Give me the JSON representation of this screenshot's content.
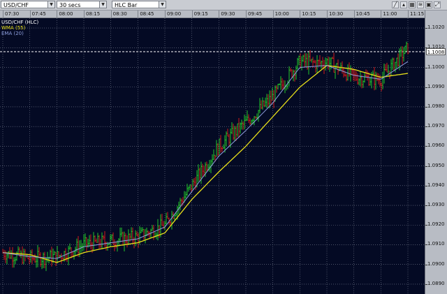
{
  "toolbar": {
    "symbol": "USD/CHF",
    "interval": "30 secs",
    "chart_style": "HLC Bar",
    "tool_icons": [
      "pencil-icon",
      "chart-icon",
      "grid-icon",
      "indicator-icon",
      "settings-icon",
      "expand-icon"
    ]
  },
  "time_labels": [
    "07:30",
    "07:45",
    "08:00",
    "08:15",
    "08:30",
    "08:45",
    "09:00",
    "09:15",
    "09:30",
    "09:45",
    "10:00",
    "10:15",
    "10:30",
    "10:45",
    "11:00",
    "11:15"
  ],
  "legend": {
    "title": "USD/CHF (HLC)",
    "wma": "WMA (55)",
    "ema": "EMA (20)"
  },
  "current_price": "1.1008",
  "colors": {
    "background": "#040a24",
    "grid": "#7a8092",
    "up_bar": "#22c62a",
    "down_bar": "#d11a1a",
    "wma": "#e8e01a",
    "ema": "#8fa0e0",
    "legend_title": "#ffffff"
  },
  "chart_data": {
    "type": "line",
    "title": "USD/CHF (HLC)",
    "x_axis_time_labels": [
      "07:30",
      "07:45",
      "08:00",
      "08:15",
      "08:30",
      "08:45",
      "09:00",
      "09:15",
      "09:30",
      "09:45",
      "10:00",
      "10:15",
      "10:30",
      "10:45",
      "11:00",
      "11:15"
    ],
    "y_tick_labels": [
      "1.1020",
      "1.1010",
      "1.1000",
      "1.0990",
      "1.0980",
      "1.0970",
      "1.0960",
      "1.0950",
      "1.0940",
      "1.0930",
      "1.0920",
      "1.0910",
      "1.0900",
      "1.0890"
    ],
    "ylim": [
      1.0885,
      1.1025
    ],
    "current_price_line": 1.1008,
    "grid": true,
    "series": [
      {
        "name": "USD/CHF (HLC)",
        "x": [
          "07:30",
          "07:45",
          "08:00",
          "08:15",
          "08:30",
          "08:45",
          "09:00",
          "09:15",
          "09:30",
          "09:45",
          "10:00",
          "10:15",
          "10:25",
          "10:30",
          "10:45",
          "11:00",
          "11:15"
        ],
        "values": [
          1.0906,
          1.0903,
          1.0904,
          1.091,
          1.0912,
          1.0914,
          1.092,
          1.094,
          1.096,
          1.0972,
          1.0985,
          1.1003,
          1.1002,
          1.1003,
          1.0995,
          1.0994,
          1.101
        ]
      },
      {
        "name": "WMA (55)",
        "x": [
          "07:30",
          "07:45",
          "08:00",
          "08:15",
          "08:30",
          "08:45",
          "09:00",
          "09:15",
          "09:30",
          "09:45",
          "10:00",
          "10:15",
          "10:30",
          "10:45",
          "11:00",
          "11:15"
        ],
        "values": [
          1.0906,
          1.0905,
          1.0901,
          1.0906,
          1.0909,
          1.0911,
          1.0916,
          1.0933,
          1.0947,
          1.096,
          1.0975,
          1.099,
          1.1001,
          1.0999,
          1.0995,
          1.0997
        ]
      },
      {
        "name": "EMA (20)",
        "x": [
          "07:30",
          "07:45",
          "08:00",
          "08:15",
          "08:30",
          "08:45",
          "09:00",
          "09:15",
          "09:30",
          "09:45",
          "10:00",
          "10:15",
          "10:30",
          "10:45",
          "11:00",
          "11:15"
        ],
        "values": [
          1.0906,
          1.0904,
          1.0903,
          1.0909,
          1.0911,
          1.0913,
          1.0919,
          1.0937,
          1.0955,
          1.0968,
          1.0982,
          1.1,
          1.1001,
          1.0996,
          1.0994,
          1.1003
        ]
      }
    ]
  }
}
